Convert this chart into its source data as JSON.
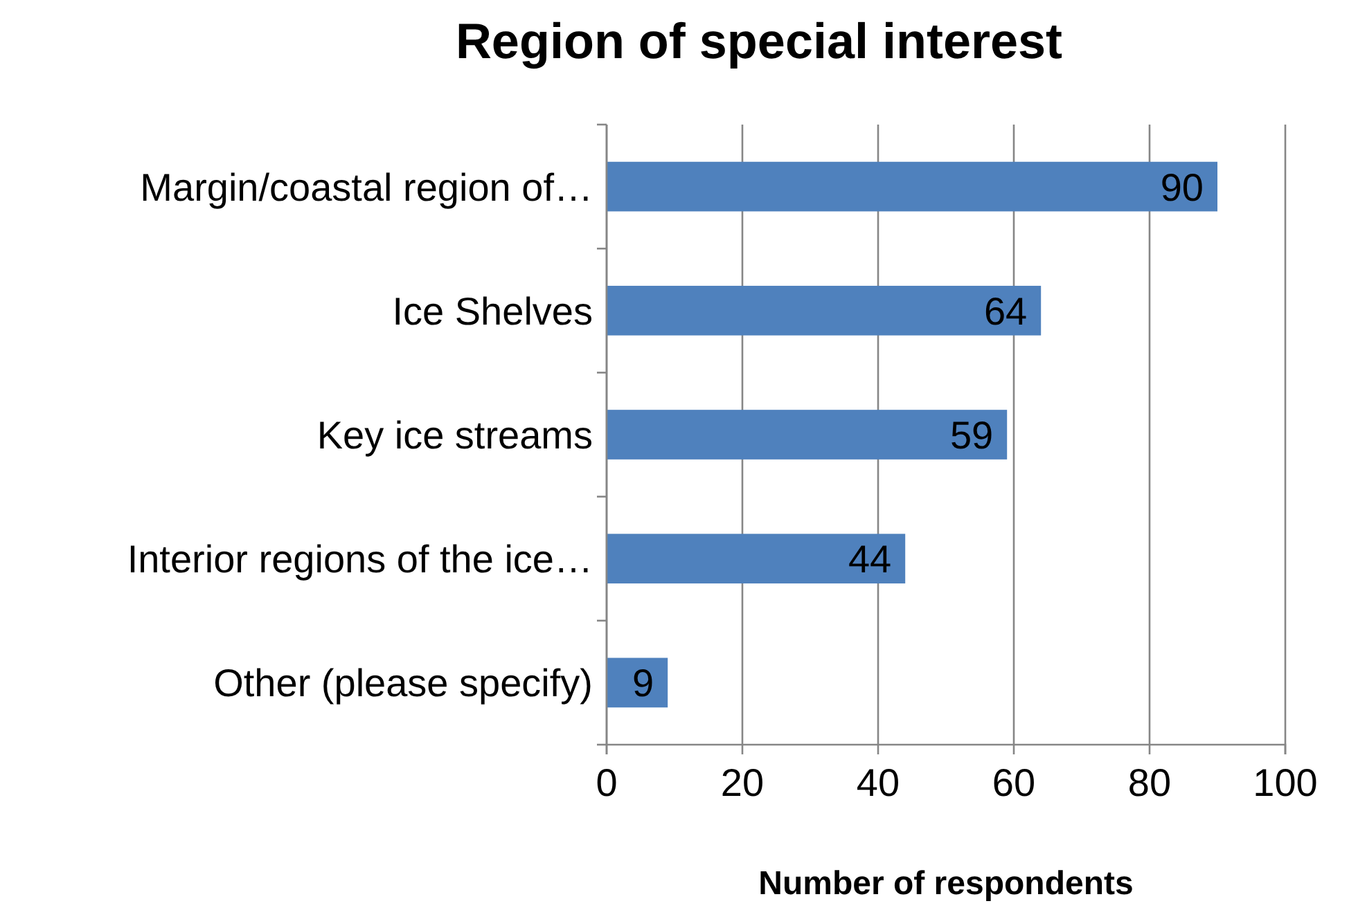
{
  "chart_data": {
    "type": "bar",
    "orientation": "horizontal",
    "title": "Region of special interest",
    "xlabel": "Number of respondents",
    "categories": [
      "Margin/coastal region of…",
      "Ice Shelves",
      "Key ice streams",
      "Interior regions of the ice…",
      "Other (please specify)"
    ],
    "values": [
      90,
      64,
      59,
      44,
      9
    ],
    "color": "#4f81bd",
    "xlim": [
      0,
      100
    ],
    "xticks": [
      0,
      20,
      40,
      60,
      80,
      100
    ],
    "grid": "x",
    "data_labels": true
  }
}
